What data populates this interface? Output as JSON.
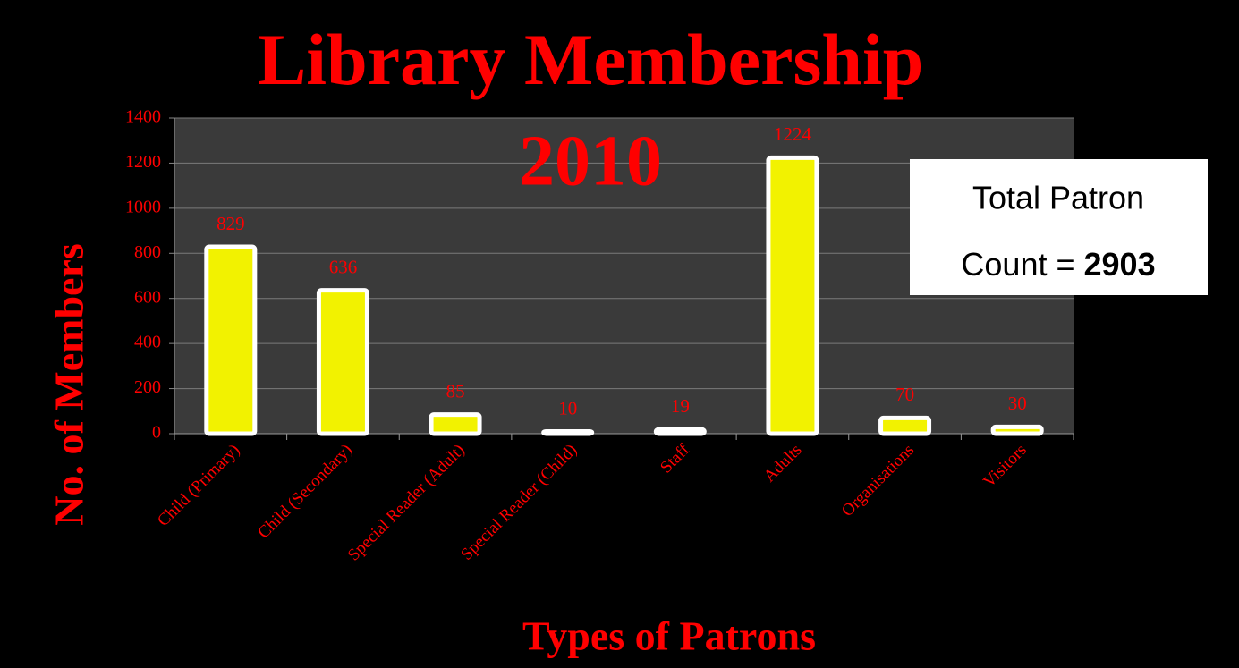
{
  "chart_data": {
    "type": "bar",
    "title": "Library Membership",
    "subtitle": "2010",
    "x_label": "Types of Patrons",
    "y_label": "No. of Members",
    "categories": [
      "Child (Primary)",
      "Child (Secondary)",
      "Special Reader (Adult)",
      "Special Reader (Child)",
      "Staff",
      "Adults",
      "Organisations",
      "Visitors"
    ],
    "values": [
      829,
      636,
      85,
      10,
      19,
      1224,
      70,
      30
    ],
    "color": "#f2f200",
    "ylim": [
      0,
      1400
    ],
    "yticks": [
      0,
      200,
      400,
      600,
      800,
      1000,
      1200,
      1400
    ],
    "grid": true,
    "annotation": {
      "line1": "Total Patron",
      "line2": "Count = ",
      "total": "2903"
    }
  }
}
